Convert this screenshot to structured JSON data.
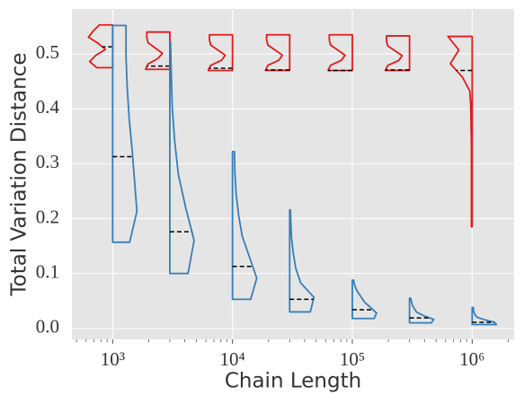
{
  "chart_data": {
    "type": "violin",
    "xlabel": "Chain Length",
    "ylabel": "Total Variation Distance",
    "xscale": "log",
    "grid": true,
    "xlim": [
      457,
      2238721
    ],
    "ylim": [
      -0.02,
      0.582
    ],
    "xticks": [
      {
        "value": 1000,
        "label": "10³"
      },
      {
        "value": 10000,
        "label": "10⁴"
      },
      {
        "value": 100000,
        "label": "10⁵"
      },
      {
        "value": 1000000,
        "label": "10⁶"
      }
    ],
    "yticks": [
      {
        "value": 0,
        "label": "0.0"
      },
      0.1,
      0.2,
      0.3,
      0.4,
      0.5
    ],
    "series": [
      {
        "color": "#e41a1c",
        "side": "left",
        "positions": [
          1000,
          3000,
          10000,
          30000,
          100000,
          300000,
          1000000
        ],
        "min": [
          0.475,
          0.472,
          0.47,
          0.47,
          0.47,
          0.47,
          0.185
        ],
        "max": [
          0.553,
          0.54,
          0.535,
          0.535,
          0.535,
          0.533,
          0.532
        ],
        "mean": [
          0.513,
          0.478,
          0.474,
          0.471,
          0.47,
          0.471,
          0.47
        ],
        "density": [
          [
            0.65,
            0.95,
            0.7,
            0.3,
            0.6,
            1.0,
            0.8,
            0.55
          ],
          [
            1.0,
            0.9,
            0.5,
            0.3,
            0.6,
            0.9,
            0.95,
            0.95
          ],
          [
            1.0,
            0.9,
            0.45,
            0.3,
            0.6,
            0.9,
            0.95,
            0.95
          ],
          [
            1.0,
            0.9,
            0.45,
            0.3,
            0.6,
            0.9,
            0.95,
            0.95
          ],
          [
            1.0,
            0.9,
            0.45,
            0.3,
            0.6,
            0.9,
            0.95,
            0.95
          ],
          [
            1.0,
            0.9,
            0.45,
            0.3,
            0.6,
            0.9,
            0.95,
            0.95
          ],
          [
            0.03,
            0.03,
            0.03,
            0.03,
            0.03,
            0.03,
            0.03,
            0.04,
            0.05,
            0.06,
            0.1,
            0.4,
            0.9,
            0.55,
            1.0
          ]
        ]
      },
      {
        "color": "#377eb8",
        "side": "right",
        "positions": [
          1000,
          3000,
          10000,
          30000,
          100000,
          300000,
          1000000
        ],
        "min": [
          0.157,
          0.1,
          0.053,
          0.03,
          0.018,
          0.01,
          0.007
        ],
        "max": [
          0.552,
          0.522,
          0.322,
          0.216,
          0.088,
          0.055,
          0.038
        ],
        "mean": [
          0.313,
          0.176,
          0.113,
          0.053,
          0.034,
          0.019,
          0.011
        ],
        "density": [
          [
            0.7,
            1.0,
            0.9,
            0.8,
            0.68,
            0.6,
            0.55,
            0.55
          ],
          [
            0.75,
            1.0,
            0.65,
            0.35,
            0.2,
            0.1,
            0.06,
            0.03
          ],
          [
            0.75,
            1.0,
            0.7,
            0.4,
            0.25,
            0.15,
            0.1,
            0.08
          ],
          [
            0.85,
            1.0,
            0.45,
            0.25,
            0.15,
            0.08,
            0.05,
            0.03
          ],
          [
            0.9,
            1.0,
            0.75,
            0.5,
            0.35,
            0.2,
            0.1,
            0.05
          ],
          [
            0.9,
            1.0,
            0.6,
            0.3,
            0.2,
            0.12,
            0.08,
            0.05
          ],
          [
            1.0,
            0.9,
            0.5,
            0.2,
            0.12,
            0.08,
            0.05,
            0.05
          ]
        ]
      }
    ]
  }
}
